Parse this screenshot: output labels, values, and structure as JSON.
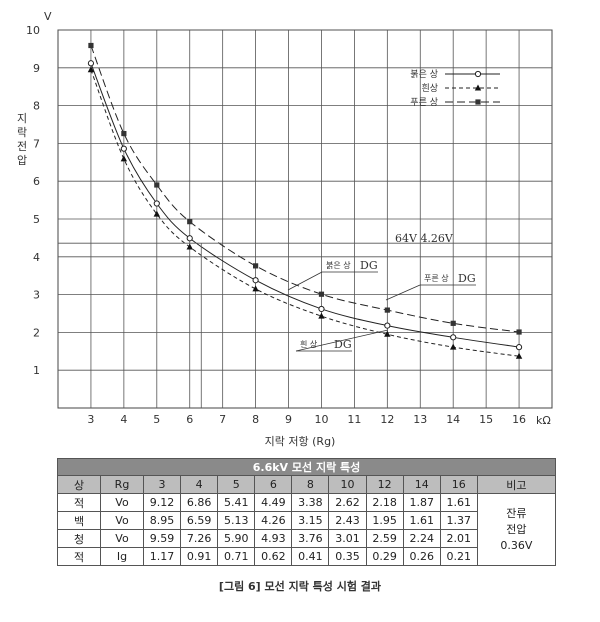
{
  "chart_data": {
    "type": "line",
    "title": "",
    "xlabel": "지락 저항 (Rg)",
    "ylabel": "지락전압",
    "y_unit": "V",
    "x_unit": "kΩ",
    "xlim": [
      2,
      17
    ],
    "ylim": [
      0,
      10
    ],
    "x_ticks": [
      3,
      4,
      5,
      6,
      7,
      8,
      9,
      10,
      11,
      12,
      13,
      14,
      15,
      16
    ],
    "y_ticks": [
      1,
      2,
      3,
      4,
      5,
      6,
      7,
      8,
      9,
      10
    ],
    "grid": true,
    "legend_position": "top-right",
    "x": [
      3,
      4,
      5,
      6,
      8,
      10,
      12,
      14,
      16
    ],
    "series": [
      {
        "name": "붉은 상",
        "values": [
          9.12,
          6.86,
          5.41,
          4.49,
          3.38,
          2.62,
          2.18,
          1.87,
          1.61
        ],
        "marker": "circle",
        "dash": "solid"
      },
      {
        "name": "흰상",
        "values": [
          8.95,
          6.59,
          5.13,
          4.26,
          3.15,
          2.43,
          1.95,
          1.61,
          1.37
        ],
        "marker": "triangle",
        "dash": "dashed"
      },
      {
        "name": "푸른 상",
        "values": [
          9.59,
          7.26,
          5.9,
          4.93,
          3.76,
          3.01,
          2.59,
          2.24,
          2.01
        ],
        "marker": "square",
        "dash": "longdash"
      }
    ],
    "annotations": {
      "ref_label": "64V 4.26V",
      "dg_label": "DG",
      "dg_red_label": "붉은 상",
      "dg_white_label": "흰 상",
      "dg_blue_label": "푸른 상"
    }
  },
  "table": {
    "title": "6.6kV 모선 지락 특성",
    "header": [
      "상",
      "Rg",
      "3",
      "4",
      "5",
      "6",
      "8",
      "10",
      "12",
      "14",
      "16",
      "비고"
    ],
    "rows": [
      {
        "phase": "적",
        "param": "Vo",
        "values": [
          "9.12",
          "6.86",
          "5.41",
          "4.49",
          "3.38",
          "2.62",
          "2.18",
          "1.87",
          "1.61"
        ]
      },
      {
        "phase": "백",
        "param": "Vo",
        "values": [
          "8.95",
          "6.59",
          "5.13",
          "4.26",
          "3.15",
          "2.43",
          "1.95",
          "1.61",
          "1.37"
        ]
      },
      {
        "phase": "청",
        "param": "Vo",
        "values": [
          "9.59",
          "7.26",
          "5.90",
          "4.93",
          "3.76",
          "3.01",
          "2.59",
          "2.24",
          "2.01"
        ]
      },
      {
        "phase": "적",
        "param": "Ig",
        "values": [
          "1.17",
          "0.91",
          "0.71",
          "0.62",
          "0.41",
          "0.35",
          "0.29",
          "0.26",
          "0.21"
        ]
      }
    ],
    "note_line1": "잔류",
    "note_line2": "전압",
    "note_line3": "0.36V"
  },
  "caption": "[그림 6] 모선 지락 특성 시험 결과"
}
